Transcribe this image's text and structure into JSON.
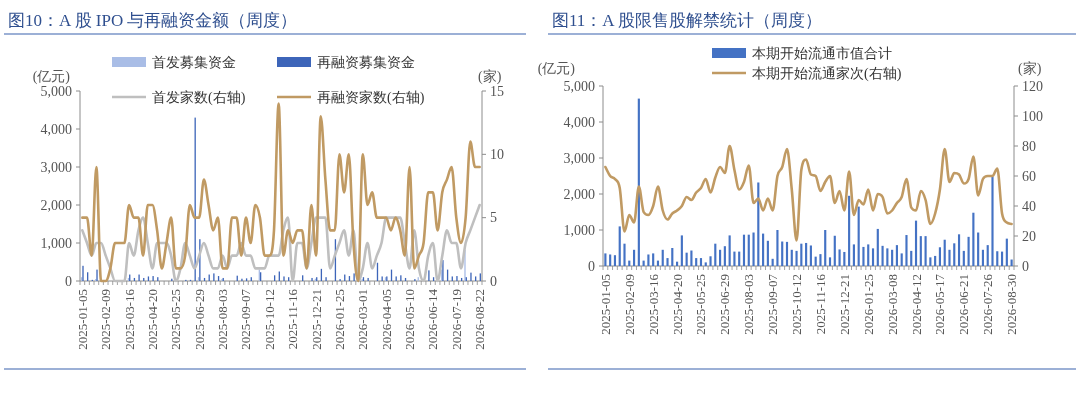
{
  "chart_data": [
    {
      "type": "bar",
      "title": "图10：A 股 IPO 与再融资金额（周度）",
      "ylabel": "(亿元)",
      "y2label": "(家)",
      "legend": "top",
      "categories": [
        "2025-01-05",
        null,
        null,
        null,
        null,
        "2025-02-09",
        null,
        null,
        null,
        null,
        "2025-03-16",
        null,
        null,
        null,
        null,
        "2025-04-20",
        null,
        null,
        null,
        null,
        "2025-05-25",
        null,
        null,
        null,
        null,
        "2025-06-29",
        null,
        null,
        null,
        null,
        "2025-08-03",
        null,
        null,
        null,
        null,
        "2025-09-07",
        null,
        null,
        null,
        null,
        "2025-10-12",
        null,
        null,
        null,
        null,
        "2025-11-16",
        null,
        null,
        null,
        null,
        "2025-12-21",
        null,
        null,
        null,
        null,
        "2026-01-25",
        null,
        null,
        null,
        null,
        "2026-03-01",
        null,
        null,
        null,
        null,
        "2026-04-05",
        null,
        null,
        null,
        null,
        "2026-05-10",
        null,
        null,
        null,
        null,
        "2026-06-14",
        null,
        null,
        null,
        null,
        "2026-07-19",
        null,
        null,
        null,
        null,
        "2026-08-22"
      ],
      "ylim": [
        0,
        5000
      ],
      "yticks": [
        0,
        {
          "value": 1000,
          "label": "1,000"
        },
        {
          "value": 2000,
          "label": "2,000"
        },
        {
          "value": 3000,
          "label": "3,000"
        },
        {
          "value": 4000,
          "label": "4,000"
        },
        {
          "value": 5000,
          "label": "5,000"
        }
      ],
      "y2lim": [
        0,
        15
      ],
      "y2ticks": [
        0,
        5,
        10,
        15
      ],
      "series": [
        {
          "name": "首发募集资金",
          "color": "#a9bde6",
          "values": [
            100,
            0,
            0,
            50,
            0,
            0,
            0,
            0,
            0,
            0,
            80,
            0,
            0,
            0,
            0,
            0,
            0,
            0,
            0,
            0,
            null,
            0,
            0,
            0,
            0,
            100,
            0,
            0,
            0,
            0,
            50,
            0,
            0,
            0,
            0,
            0,
            0,
            0,
            300,
            0,
            0,
            0,
            0,
            0,
            0,
            null,
            0,
            0,
            0,
            0,
            60,
            0,
            0,
            0,
            0,
            0,
            0,
            0,
            0,
            0,
            50,
            0,
            0,
            0,
            0,
            100,
            0,
            0,
            0,
            0,
            0,
            0,
            100,
            0,
            0,
            0,
            null,
            300,
            0,
            0,
            0,
            0,
            820,
            0,
            0,
            0
          ]
        },
        {
          "name": "再融资募集资金",
          "color": "#3d65b9",
          "values": [
            400,
            230,
            30,
            300,
            0,
            0,
            0,
            0,
            0,
            null,
            170,
            80,
            170,
            80,
            120,
            130,
            100,
            0,
            0,
            60,
            null,
            0,
            30,
            30,
            4300,
            1100,
            80,
            170,
            200,
            130,
            80,
            0,
            0,
            140,
            60,
            70,
            100,
            0,
            230,
            0,
            0,
            150,
            250,
            120,
            100,
            0,
            0,
            150,
            0,
            80,
            100,
            320,
            100,
            0,
            1100,
            50,
            170,
            130,
            200,
            0,
            100,
            80,
            0,
            480,
            120,
            120,
            300,
            120,
            150,
            80,
            0,
            50,
            0,
            0,
            280,
            100,
            null,
            550,
            300,
            120,
            130,
            80,
            100,
            220,
            120,
            200
          ]
        },
        {
          "name": "首发家数(右轴)",
          "type": "line",
          "axis": "y2",
          "color": "#bfbfbf",
          "values": [
            4,
            3,
            2,
            3,
            3,
            2,
            1,
            0,
            0,
            0,
            3,
            2,
            4,
            5,
            3,
            1,
            3,
            3,
            3,
            2,
            0,
            1,
            3,
            2,
            1,
            2,
            3,
            2,
            1,
            1,
            2,
            1,
            2,
            2,
            3,
            2,
            2,
            1,
            1,
            1,
            2,
            2,
            2,
            4,
            5,
            0,
            3,
            3,
            1,
            3,
            5,
            5,
            5,
            1,
            2,
            3,
            4,
            2,
            4,
            0,
            1,
            3,
            1,
            2,
            3,
            5,
            5,
            5,
            5,
            3,
            1,
            4,
            1,
            0,
            2,
            3,
            0,
            2,
            4,
            3,
            3,
            1,
            3,
            4,
            5,
            6
          ]
        },
        {
          "name": "再融资家数(右轴)",
          "type": "line",
          "axis": "y2",
          "color": "#c09a63",
          "values": [
            5,
            5,
            2,
            9,
            0,
            0,
            1,
            3,
            3,
            3,
            6,
            5,
            5,
            2,
            6,
            6,
            4,
            1,
            3,
            5,
            1,
            1,
            2,
            6,
            5,
            5,
            8,
            6,
            4,
            5,
            1,
            1,
            5,
            5,
            2,
            5,
            3,
            6,
            5,
            2,
            2,
            4,
            14,
            2,
            4,
            3,
            4,
            4,
            1,
            6,
            2,
            13,
            8,
            4,
            4,
            10,
            7,
            10,
            3,
            0,
            10,
            6,
            7,
            5,
            5,
            5,
            4,
            5,
            4,
            2,
            9,
            1,
            2,
            3,
            7,
            7,
            4,
            7,
            8,
            9,
            5,
            3,
            5,
            11,
            9,
            9
          ]
        }
      ]
    },
    {
      "type": "bar",
      "title": "图11：A 股限售股解禁统计（周度）",
      "ylabel": "(亿元)",
      "y2label": "(家)",
      "legend": "top",
      "categories": [
        "2025-01-05",
        null,
        null,
        null,
        null,
        "2025-02-09",
        null,
        null,
        null,
        null,
        "2025-03-16",
        null,
        null,
        null,
        null,
        "2025-04-20",
        null,
        null,
        null,
        null,
        "2025-05-25",
        null,
        null,
        null,
        null,
        "2025-06-29",
        null,
        null,
        null,
        null,
        "2025-08-03",
        null,
        null,
        null,
        null,
        "2025-09-07",
        null,
        null,
        null,
        null,
        "2025-10-12",
        null,
        null,
        null,
        null,
        "2025-11-16",
        null,
        null,
        null,
        null,
        "2025-12-21",
        null,
        null,
        null,
        null,
        "2026-01-25",
        null,
        null,
        null,
        null,
        "2026-03-08",
        null,
        null,
        null,
        null,
        "2026-04-12",
        null,
        null,
        null,
        null,
        "2026-05-17",
        null,
        null,
        null,
        null,
        "2026-06-21",
        null,
        null,
        null,
        null,
        "2026-07-26",
        null,
        null,
        null,
        null,
        "2026-08-30"
      ],
      "ylim": [
        0,
        5000
      ],
      "yticks": [
        0,
        {
          "value": 1000,
          "label": "1,000"
        },
        {
          "value": 2000,
          "label": "2,000"
        },
        {
          "value": 3000,
          "label": "3,000"
        },
        {
          "value": 4000,
          "label": "4,000"
        },
        {
          "value": 5000,
          "label": "5,000"
        }
      ],
      "y2lim": [
        0,
        120
      ],
      "y2ticks": [
        0,
        20,
        40,
        60,
        80,
        100,
        120
      ],
      "series": [
        {
          "name": "本期开始流通市值合计",
          "color": "#4472c4",
          "values": [
            350,
            320,
            300,
            1100,
            620,
            150,
            450,
            4650,
            150,
            320,
            350,
            150,
            450,
            220,
            500,
            120,
            850,
            370,
            430,
            220,
            220,
            100,
            270,
            620,
            450,
            550,
            850,
            400,
            400,
            870,
            870,
            930,
            2320,
            900,
            700,
            200,
            1000,
            680,
            670,
            450,
            420,
            620,
            640,
            570,
            260,
            330,
            1000,
            240,
            840,
            460,
            390,
            1950,
            600,
            1650,
            530,
            600,
            490,
            1030,
            560,
            490,
            450,
            580,
            350,
            860,
            420,
            1260,
            830,
            830,
            240,
            280,
            520,
            730,
            450,
            630,
            880,
            420,
            810,
            1480,
            930,
            450,
            580,
            2480,
            410,
            400,
            760,
            180
          ]
        },
        {
          "name": "本期开始流通家次(右轴)",
          "type": "line",
          "axis": "y2",
          "color": "#c09a63",
          "values": [
            66,
            60,
            58,
            52,
            23,
            34,
            29,
            53,
            36,
            34,
            40,
            53,
            37,
            31,
            35,
            37,
            40,
            46,
            44,
            49,
            52,
            58,
            49,
            59,
            66,
            62,
            80,
            64,
            51,
            56,
            67,
            42,
            45,
            37,
            45,
            37,
            60,
            66,
            78,
            51,
            17,
            64,
            71,
            61,
            60,
            50,
            56,
            60,
            42,
            50,
            37,
            63,
            34,
            44,
            41,
            51,
            37,
            48,
            46,
            35,
            37,
            42,
            46,
            58,
            39,
            37,
            50,
            44,
            28,
            35,
            51,
            78,
            56,
            62,
            61,
            55,
            58,
            73,
            47,
            58,
            60,
            60,
            65,
            35,
            29,
            28
          ]
        }
      ]
    }
  ]
}
